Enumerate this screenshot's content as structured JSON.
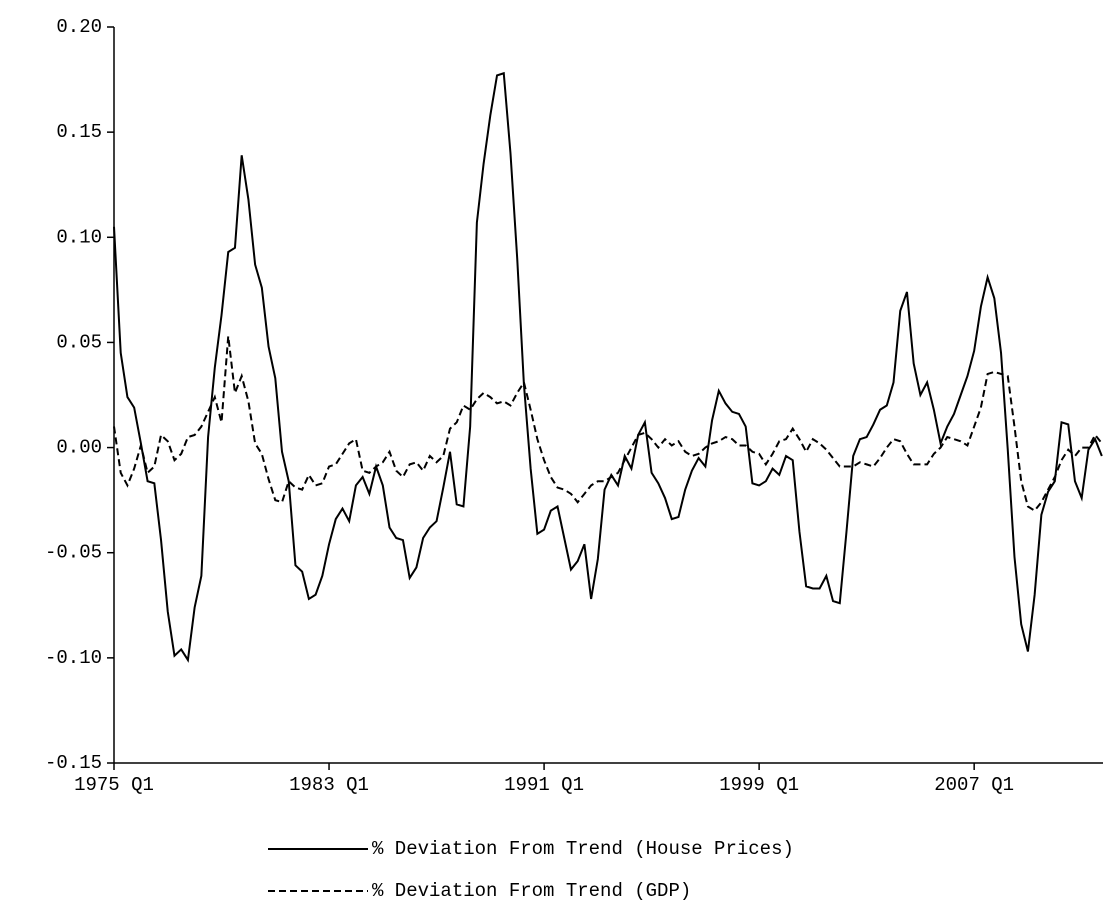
{
  "chart_data": {
    "type": "line",
    "categories": [
      "1975 Q1",
      null,
      null,
      null,
      null,
      null,
      null,
      null,
      null,
      null,
      null,
      null,
      null,
      null,
      null,
      null,
      null,
      null,
      null,
      null,
      null,
      null,
      null,
      null,
      null,
      null,
      null,
      null,
      null,
      null,
      null,
      null,
      "1983 Q1",
      null,
      null,
      null,
      null,
      null,
      null,
      null,
      null,
      null,
      null,
      null,
      null,
      null,
      null,
      null,
      null,
      null,
      null,
      null,
      null,
      null,
      null,
      null,
      null,
      null,
      null,
      null,
      null,
      null,
      null,
      null,
      "1991 Q1",
      null,
      null,
      null,
      null,
      null,
      null,
      null,
      null,
      null,
      null,
      null,
      null,
      null,
      null,
      null,
      null,
      null,
      null,
      null,
      null,
      null,
      null,
      null,
      null,
      null,
      null,
      null,
      null,
      null,
      null,
      null,
      "1999 Q1",
      null,
      null,
      null,
      null,
      null,
      null,
      null,
      null,
      null,
      null,
      null,
      null,
      null,
      null,
      null,
      null,
      null,
      null,
      null,
      null,
      null,
      null,
      null,
      null,
      null,
      null,
      null,
      null,
      null,
      null,
      null,
      "2007 Q1",
      null,
      null,
      null,
      null,
      null,
      null,
      null,
      null,
      null,
      null,
      null,
      null,
      null,
      null,
      null,
      null,
      null,
      null,
      null
    ],
    "series": [
      {
        "name": "% Deviation From Trend (House Prices)",
        "color": "#000000",
        "line_style": "solid",
        "values": [
          0.105,
          0.045,
          0.024,
          0.019,
          0.002,
          -0.016,
          -0.017,
          -0.044,
          -0.078,
          -0.099,
          -0.096,
          -0.101,
          -0.076,
          -0.061,
          0.005,
          0.038,
          0.063,
          0.093,
          0.095,
          0.139,
          0.118,
          0.087,
          0.076,
          0.048,
          0.033,
          -0.002,
          -0.016,
          -0.056,
          -0.059,
          -0.072,
          -0.07,
          -0.061,
          -0.046,
          -0.034,
          -0.029,
          -0.035,
          -0.018,
          -0.014,
          -0.022,
          -0.009,
          -0.018,
          -0.038,
          -0.043,
          -0.044,
          -0.062,
          -0.057,
          -0.043,
          -0.038,
          -0.035,
          -0.019,
          -0.002,
          -0.027,
          -0.028,
          0.01,
          0.107,
          0.135,
          0.158,
          0.177,
          0.178,
          0.14,
          0.09,
          0.03,
          -0.01,
          -0.041,
          -0.039,
          -0.03,
          -0.028,
          -0.043,
          -0.058,
          -0.054,
          -0.046,
          -0.072,
          -0.053,
          -0.02,
          -0.013,
          -0.018,
          -0.004,
          -0.01,
          0.006,
          0.012,
          -0.012,
          -0.017,
          -0.024,
          -0.034,
          -0.033,
          -0.02,
          -0.011,
          -0.005,
          -0.009,
          0.013,
          0.027,
          0.021,
          0.017,
          0.016,
          0.01,
          -0.017,
          -0.018,
          -0.016,
          -0.01,
          -0.013,
          -0.004,
          -0.006,
          -0.04,
          -0.066,
          -0.067,
          -0.067,
          -0.061,
          -0.073,
          -0.074,
          -0.04,
          -0.004,
          0.004,
          0.005,
          0.011,
          0.018,
          0.02,
          0.031,
          0.065,
          0.074,
          0.04,
          0.025,
          0.031,
          0.018,
          0.002,
          0.01,
          0.016,
          0.025,
          0.034,
          0.046,
          0.067,
          0.081,
          0.071,
          0.045,
          -0.001,
          -0.052,
          -0.084,
          -0.097,
          -0.07,
          -0.032,
          -0.021,
          -0.016,
          0.012,
          0.011,
          -0.016,
          -0.024,
          -0.001,
          0.004,
          -0.004
        ]
      },
      {
        "name": "% Deviation From Trend (GDP)",
        "color": "#000000",
        "line_style": "dashed",
        "values": [
          0.01,
          -0.012,
          -0.018,
          -0.01,
          0.001,
          -0.012,
          -0.009,
          0.006,
          0.003,
          -0.006,
          -0.003,
          0.005,
          0.006,
          0.01,
          0.017,
          0.024,
          0.012,
          0.053,
          0.026,
          0.034,
          0.022,
          0.002,
          -0.003,
          -0.015,
          -0.025,
          -0.026,
          -0.016,
          -0.019,
          -0.02,
          -0.013,
          -0.018,
          -0.017,
          -0.009,
          -0.008,
          -0.003,
          0.002,
          0.004,
          -0.011,
          -0.012,
          -0.009,
          -0.007,
          -0.002,
          -0.011,
          -0.014,
          -0.008,
          -0.007,
          -0.011,
          -0.004,
          -0.007,
          -0.004,
          0.009,
          0.012,
          0.02,
          0.018,
          0.023,
          0.026,
          0.024,
          0.021,
          0.022,
          0.02,
          0.026,
          0.031,
          0.018,
          0.004,
          -0.006,
          -0.014,
          -0.019,
          -0.02,
          -0.022,
          -0.026,
          -0.022,
          -0.018,
          -0.016,
          -0.016,
          -0.014,
          -0.012,
          -0.006,
          0.0,
          0.006,
          0.007,
          0.004,
          0.0,
          0.004,
          0.001,
          0.003,
          -0.002,
          -0.004,
          -0.003,
          0.0,
          0.002,
          0.003,
          0.005,
          0.004,
          0.001,
          0.001,
          -0.002,
          -0.003,
          -0.008,
          -0.003,
          0.003,
          0.004,
          0.009,
          0.004,
          -0.002,
          0.004,
          0.002,
          -0.001,
          -0.005,
          -0.009,
          -0.009,
          -0.009,
          -0.007,
          -0.008,
          -0.009,
          -0.005,
          0.0,
          0.004,
          0.003,
          -0.003,
          -0.008,
          -0.008,
          -0.008,
          -0.003,
          0.0,
          0.005,
          0.004,
          0.003,
          0.001,
          0.01,
          0.019,
          0.035,
          0.036,
          0.035,
          0.034,
          0.01,
          -0.016,
          -0.028,
          -0.03,
          -0.026,
          -0.02,
          -0.014,
          -0.006,
          -0.001,
          -0.004,
          0.0,
          0.0,
          0.006,
          0.002
        ]
      }
    ],
    "ylim": [
      -0.15,
      0.2
    ],
    "yticks": [
      {
        "value": -0.15,
        "label": "-0.15"
      },
      {
        "value": -0.1,
        "label": "-0.10"
      },
      {
        "value": -0.05,
        "label": "-0.05"
      },
      {
        "value": 0,
        "label": "0.00"
      },
      {
        "value": 0.05,
        "label": "0.05"
      },
      {
        "value": 0.1,
        "label": "0.10"
      },
      {
        "value": 0.15,
        "label": "0.15"
      },
      {
        "value": 0.2,
        "label": "0.20"
      }
    ],
    "grid": false,
    "legend": "bottom"
  }
}
